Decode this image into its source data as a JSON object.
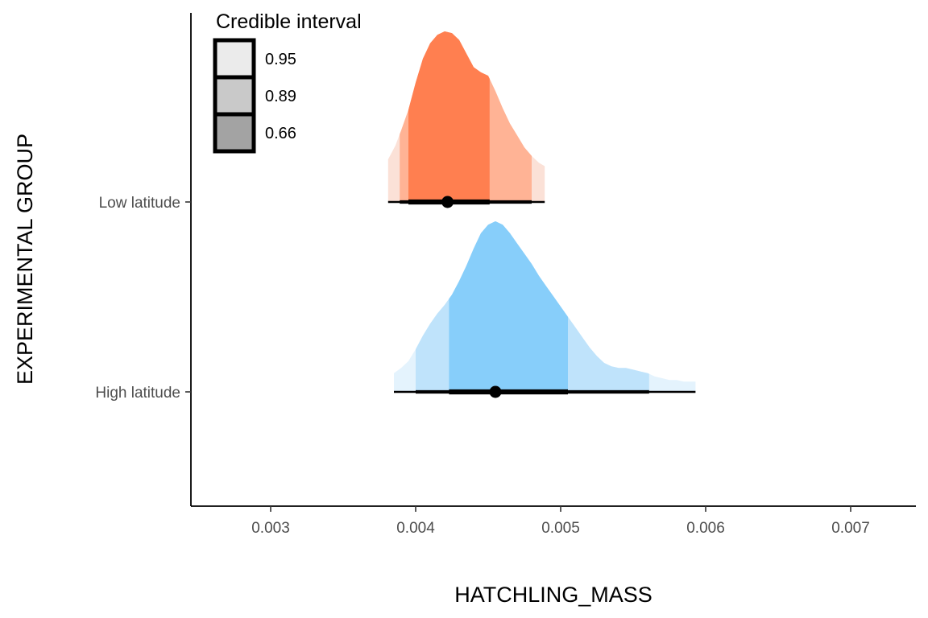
{
  "chart_data": {
    "type": "halfeye",
    "xlabel": "HATCHLING_MASS",
    "ylabel": "EXPERIMENTAL GROUP",
    "xlim": [
      0.00245,
      0.00745
    ],
    "x_ticks": [
      "0.003",
      "0.004",
      "0.005",
      "0.006",
      "0.007"
    ],
    "x_tick_values": [
      0.003,
      0.004,
      0.005,
      0.006,
      0.007
    ],
    "categories": [
      "Low latitude",
      "High latitude"
    ],
    "grid": false,
    "legend": {
      "title": "Credible interval",
      "position": "top-left",
      "levels": [
        "0.95",
        "0.89",
        "0.66"
      ],
      "swatch_colors": [
        "#ebebeb",
        "#c9c9c9",
        "#a3a3a3"
      ]
    },
    "series": [
      {
        "category": "Low latitude",
        "color": "#ff7f50",
        "band_colors": [
          "#fbe1d7",
          "#ffb395",
          "#ff7f50"
        ],
        "point": 0.00422,
        "intervals": {
          "0.95": [
            0.00381,
            0.00489
          ],
          "0.89": [
            0.00389,
            0.0048
          ],
          "0.66": [
            0.00395,
            0.00451
          ]
        },
        "density": [
          [
            0.00381,
            0.25
          ],
          [
            0.00386,
            0.33
          ],
          [
            0.0039,
            0.42
          ],
          [
            0.00395,
            0.54
          ],
          [
            0.004,
            0.7
          ],
          [
            0.00405,
            0.84
          ],
          [
            0.0041,
            0.93
          ],
          [
            0.00415,
            0.98
          ],
          [
            0.0042,
            1.0
          ],
          [
            0.00425,
            0.99
          ],
          [
            0.0043,
            0.95
          ],
          [
            0.00435,
            0.87
          ],
          [
            0.0044,
            0.79
          ],
          [
            0.00445,
            0.76
          ],
          [
            0.0045,
            0.74
          ],
          [
            0.00455,
            0.65
          ],
          [
            0.0046,
            0.55
          ],
          [
            0.00465,
            0.46
          ],
          [
            0.0047,
            0.39
          ],
          [
            0.00475,
            0.32
          ],
          [
            0.0048,
            0.27
          ],
          [
            0.00485,
            0.23
          ],
          [
            0.00489,
            0.21
          ]
        ]
      },
      {
        "category": "High latitude",
        "color": "#87cefa",
        "band_colors": [
          "#e4f3fd",
          "#bfe3fb",
          "#87cefa"
        ],
        "point": 0.00455,
        "intervals": {
          "0.95": [
            0.00385,
            0.00593
          ],
          "0.89": [
            0.004,
            0.00561
          ],
          "0.66": [
            0.00423,
            0.00505
          ]
        },
        "density": [
          [
            0.00385,
            0.11
          ],
          [
            0.0039,
            0.14
          ],
          [
            0.00395,
            0.18
          ],
          [
            0.004,
            0.25
          ],
          [
            0.00405,
            0.33
          ],
          [
            0.0041,
            0.4
          ],
          [
            0.00415,
            0.46
          ],
          [
            0.0042,
            0.51
          ],
          [
            0.00425,
            0.57
          ],
          [
            0.0043,
            0.65
          ],
          [
            0.00435,
            0.74
          ],
          [
            0.0044,
            0.84
          ],
          [
            0.00445,
            0.93
          ],
          [
            0.0045,
            0.98
          ],
          [
            0.00455,
            1.0
          ],
          [
            0.0046,
            0.98
          ],
          [
            0.00465,
            0.93
          ],
          [
            0.0047,
            0.87
          ],
          [
            0.00475,
            0.81
          ],
          [
            0.0048,
            0.75
          ],
          [
            0.00485,
            0.68
          ],
          [
            0.0049,
            0.62
          ],
          [
            0.00495,
            0.56
          ],
          [
            0.005,
            0.5
          ],
          [
            0.00505,
            0.44
          ],
          [
            0.0051,
            0.38
          ],
          [
            0.00515,
            0.32
          ],
          [
            0.0052,
            0.26
          ],
          [
            0.00525,
            0.21
          ],
          [
            0.0053,
            0.17
          ],
          [
            0.00535,
            0.15
          ],
          [
            0.0054,
            0.14
          ],
          [
            0.00545,
            0.14
          ],
          [
            0.0055,
            0.13
          ],
          [
            0.00555,
            0.12
          ],
          [
            0.0056,
            0.11
          ],
          [
            0.00565,
            0.09
          ],
          [
            0.0057,
            0.08
          ],
          [
            0.00575,
            0.07
          ],
          [
            0.0058,
            0.07
          ],
          [
            0.00585,
            0.06
          ],
          [
            0.00593,
            0.06
          ]
        ]
      }
    ]
  }
}
